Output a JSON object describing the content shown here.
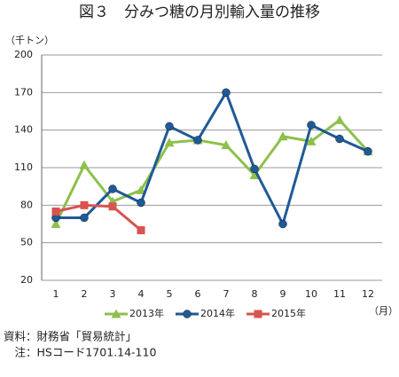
{
  "chart_data": {
    "type": "line",
    "title": "図３　分みつ糖の月別輸入量の推移",
    "y_label": "（千トン）",
    "x_label": "（月）",
    "categories": [
      "1",
      "2",
      "3",
      "4",
      "5",
      "6",
      "7",
      "8",
      "9",
      "10",
      "11",
      "12"
    ],
    "series": [
      {
        "name": "2013年",
        "color": "#8dc04c",
        "marker": "triangle",
        "values": [
          65,
          112,
          83,
          92,
          130,
          132,
          128,
          104,
          135,
          131,
          148,
          123
        ]
      },
      {
        "name": "2014年",
        "color": "#1f5a96",
        "marker": "circle",
        "values": [
          70,
          70,
          93,
          82,
          143,
          132,
          170,
          109,
          65,
          144,
          133,
          123
        ]
      },
      {
        "name": "2015年",
        "color": "#d9534f",
        "marker": "square",
        "values": [
          75,
          80,
          79,
          60,
          null,
          null,
          null,
          null,
          null,
          null,
          null,
          null
        ]
      }
    ],
    "ylim": [
      20,
      200
    ],
    "yticks": [
      20,
      50,
      80,
      110,
      140,
      170,
      200
    ],
    "grid": true,
    "legend": "bottom",
    "notes": [
      "資料：財務省「貿易統計」",
      "　注：HSコード1701.14-110"
    ]
  }
}
